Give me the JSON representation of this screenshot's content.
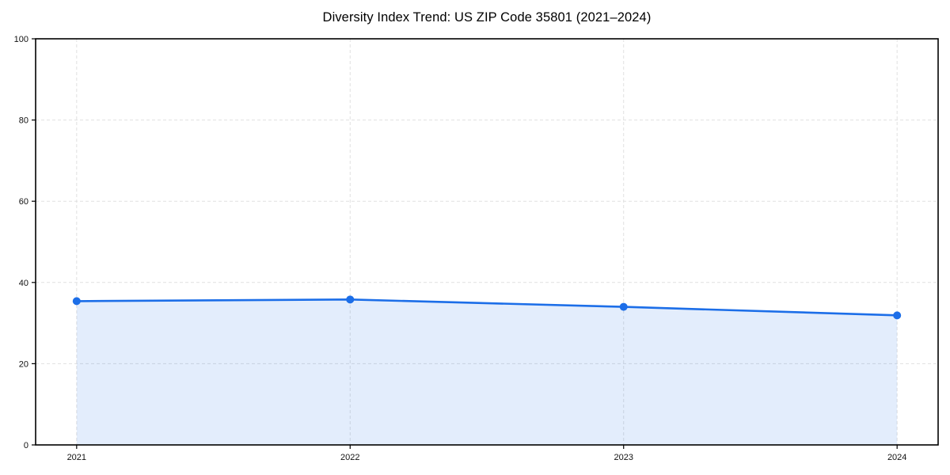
{
  "page": {
    "background": "#ffffff"
  },
  "chart_data": {
    "type": "area",
    "title": "Diversity Index Trend: US ZIP Code 35801 (2021–2024)",
    "x": [
      2021,
      2022,
      2023,
      2024
    ],
    "values": [
      35.4,
      35.8,
      34.0,
      31.9
    ],
    "xticklabels": [
      "2021",
      "2022",
      "2023",
      "2024"
    ],
    "yticks": [
      0,
      20,
      40,
      60,
      80,
      100
    ],
    "ytick_labels": [
      "0",
      "20",
      "40",
      "60",
      "80",
      "100"
    ],
    "ylim": [
      0,
      100
    ],
    "x_margin": 0.15,
    "grid": "dashed",
    "legend": "none",
    "line_color": "#1c6ee8",
    "marker_color": "#1c6ee8",
    "fill_color": "rgba(28, 110, 232, 0.12)",
    "grid_color": "#e0e0e0",
    "spine_color": "#000000",
    "tick_color": "#000000",
    "tick_label_color": "#111111"
  }
}
